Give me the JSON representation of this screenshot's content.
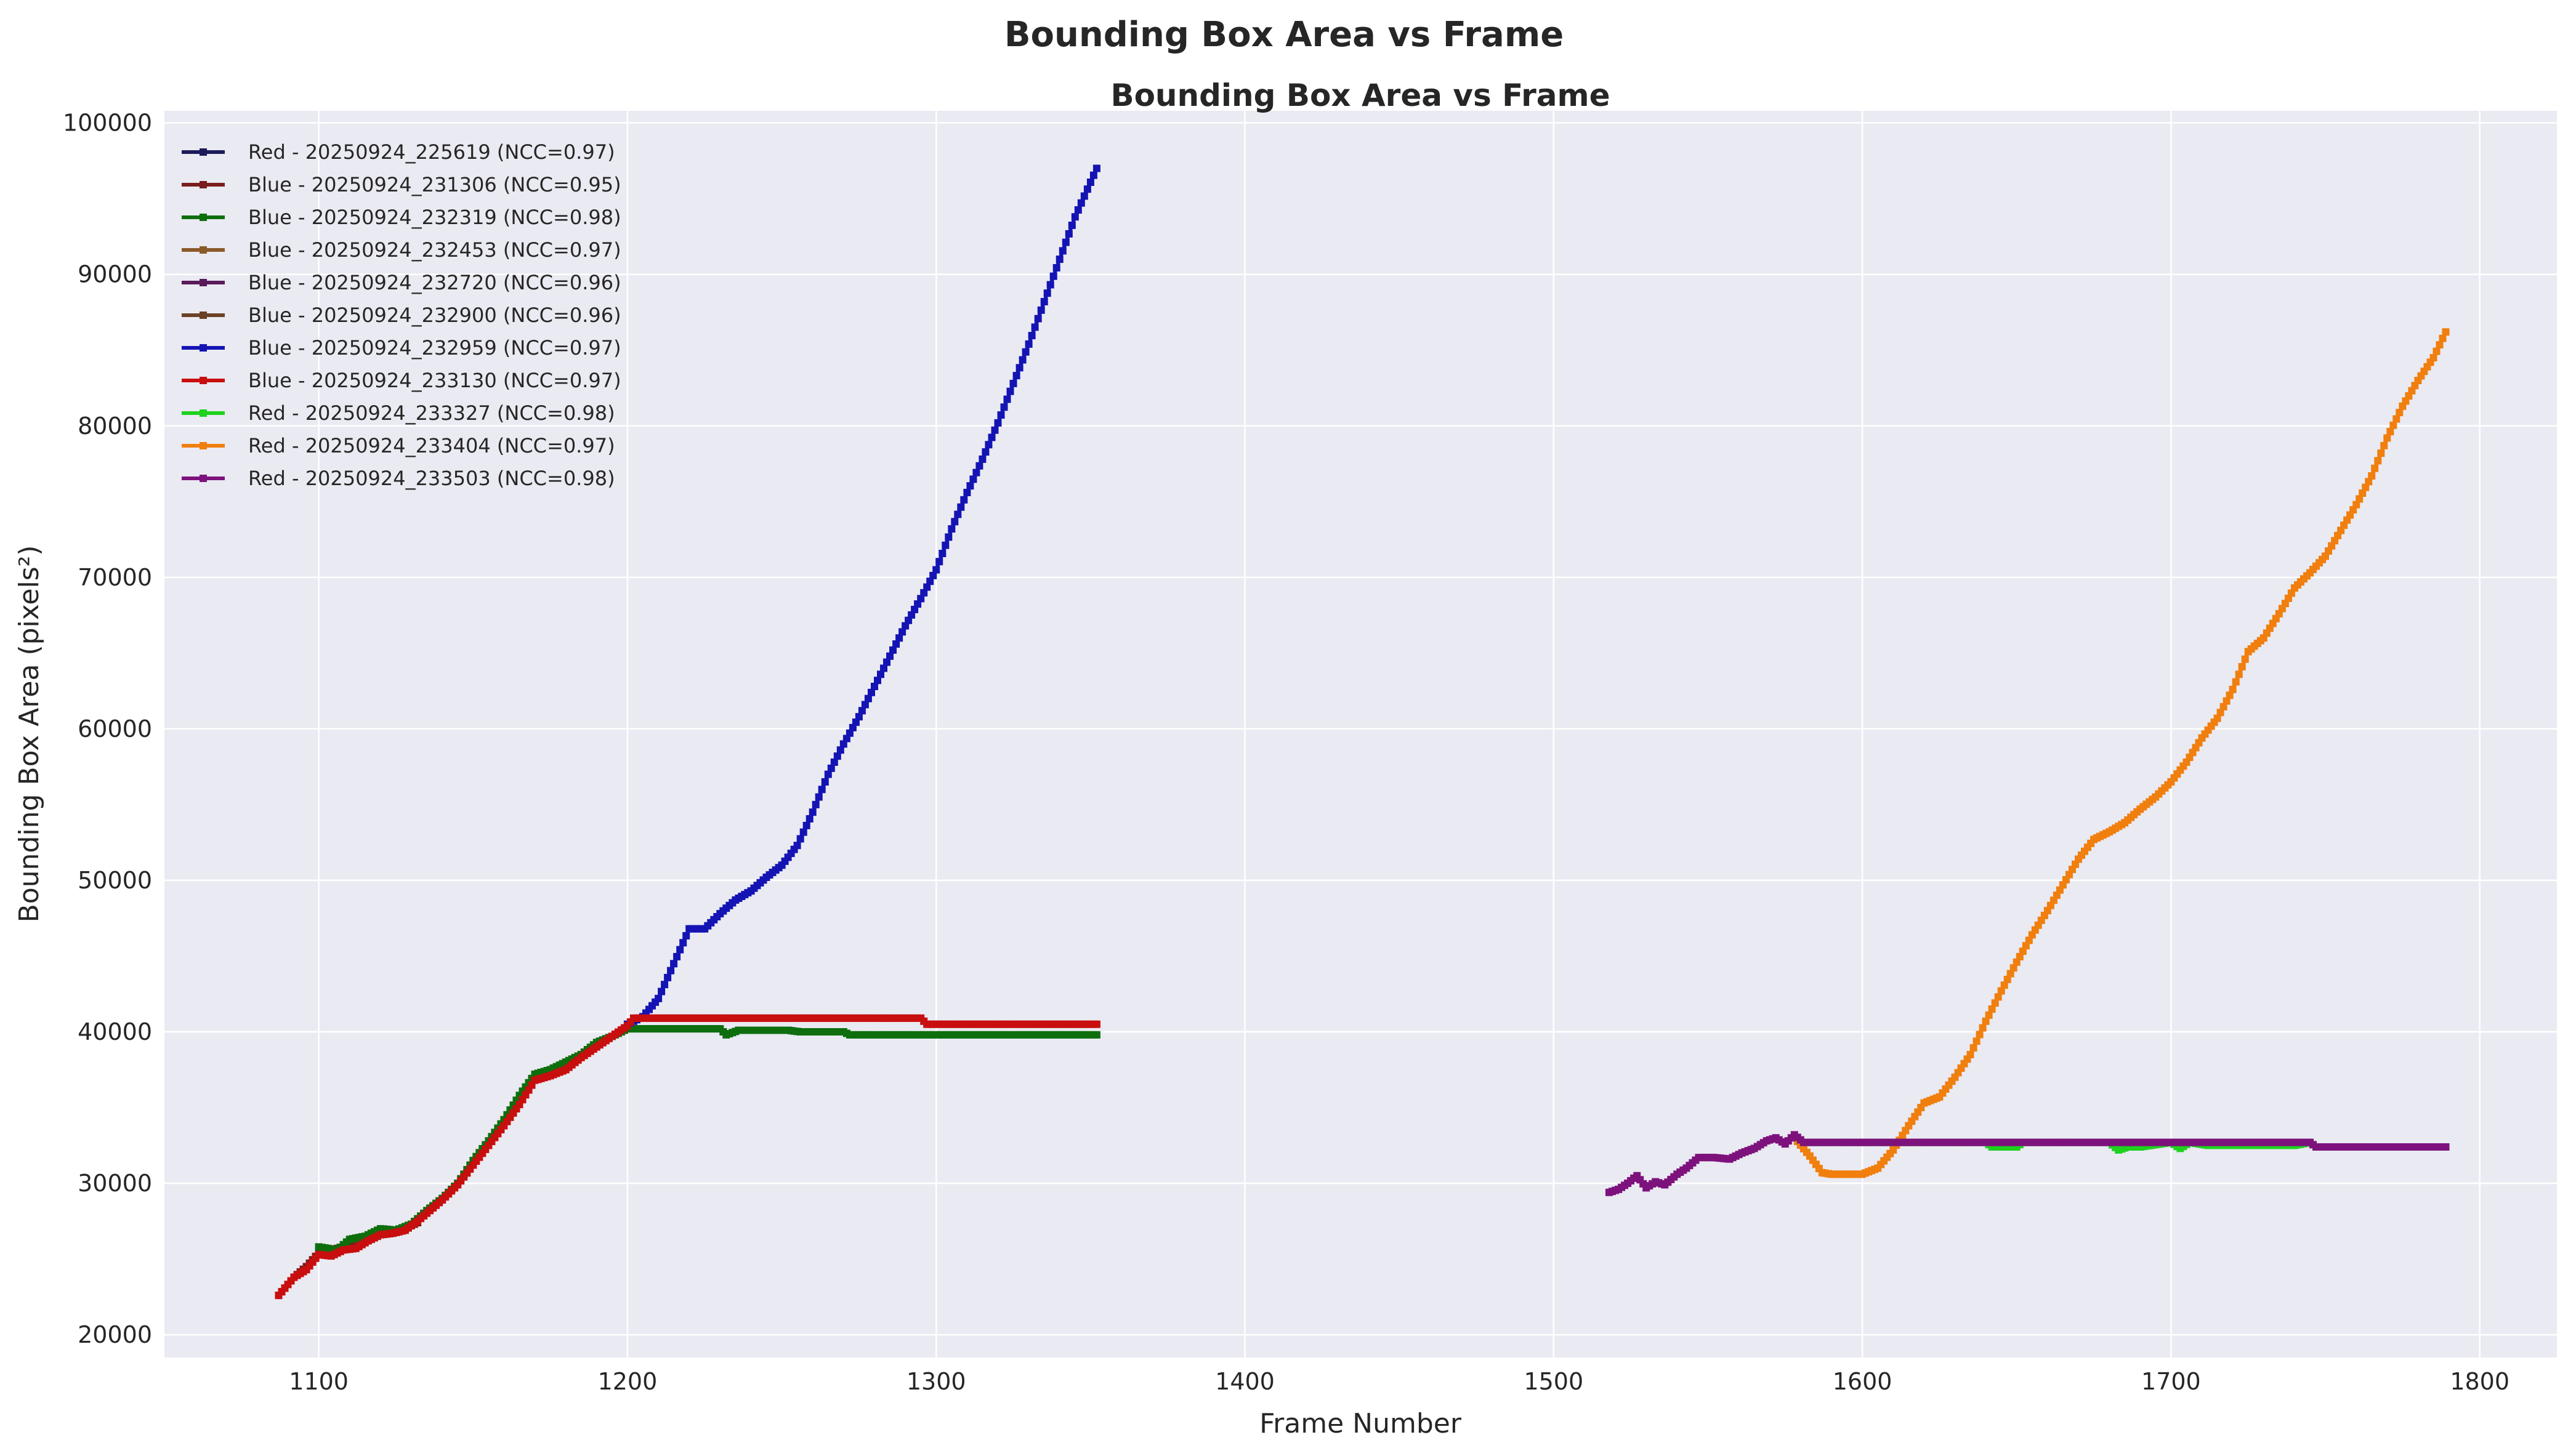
{
  "figure": {
    "suptitle": "Bounding Box Area vs Frame"
  },
  "colors": {
    "plot_bg": "#EAEAF2",
    "grid": "#FFFFFF"
  },
  "chart_data": {
    "type": "line",
    "title": "Bounding Box Area vs Frame",
    "xlabel": "Frame Number",
    "ylabel": "Bounding Box Area (pixels²)",
    "xlim": [
      1050,
      1825
    ],
    "ylim": [
      18500,
      100800
    ],
    "xticks": [
      1100,
      1200,
      1300,
      1400,
      1500,
      1600,
      1700,
      1800
    ],
    "yticks": [
      20000,
      30000,
      40000,
      50000,
      60000,
      70000,
      80000,
      90000,
      100000
    ],
    "grid": true,
    "legend_position": "top-left",
    "series": [
      {
        "name": "Red - 20250924_225619 (NCC=0.97)",
        "color": "#1c1c5a",
        "x": [],
        "y": []
      },
      {
        "name": "Blue - 20250924_231306 (NCC=0.95)",
        "color": "#7a1c1c",
        "x": [
          1087,
          1092,
          1096,
          1100,
          1104,
          1108,
          1112,
          1116,
          1120,
          1124,
          1128,
          1132
        ],
        "y": [
          22600,
          23800,
          24500,
          25400,
          25600,
          25800,
          26000,
          26400,
          26700,
          26800,
          27000,
          27400
        ]
      },
      {
        "name": "Blue - 20250924_232319 (NCC=0.98)",
        "color": "#0e6e0e",
        "x": [
          1100,
          1106,
          1110,
          1115,
          1120,
          1125,
          1130,
          1135,
          1140,
          1145,
          1150,
          1155,
          1160,
          1165,
          1170,
          1175,
          1180,
          1185,
          1190,
          1195,
          1200,
          1215,
          1230,
          1232,
          1236,
          1252,
          1256,
          1270,
          1272,
          1352
        ],
        "y": [
          25800,
          25600,
          26300,
          26500,
          27000,
          26900,
          27300,
          28200,
          29000,
          30000,
          31500,
          32800,
          34200,
          35800,
          37200,
          37500,
          38000,
          38500,
          39300,
          39700,
          40200,
          40200,
          40200,
          39800,
          40100,
          40100,
          40000,
          40000,
          39800,
          39800
        ]
      },
      {
        "name": "Blue - 20250924_232453 (NCC=0.97)",
        "color": "#8b5a2b",
        "x": [],
        "y": []
      },
      {
        "name": "Blue - 20250924_232720 (NCC=0.96)",
        "color": "#5a1a5a",
        "x": [],
        "y": []
      },
      {
        "name": "Blue - 20250924_232900 (NCC=0.96)",
        "color": "#6b4226",
        "x": [],
        "y": []
      },
      {
        "name": "Blue - 20250924_232959 (NCC=0.97)",
        "color": "#1414b4",
        "x": [
          1200,
          1205,
          1210,
          1215,
          1220,
          1225,
          1230,
          1235,
          1240,
          1245,
          1250,
          1255,
          1260,
          1265,
          1270,
          1275,
          1280,
          1285,
          1290,
          1295,
          1300,
          1305,
          1310,
          1315,
          1320,
          1325,
          1330,
          1335,
          1340,
          1345,
          1352
        ],
        "y": [
          40500,
          41000,
          42200,
          44500,
          46800,
          46800,
          47800,
          48700,
          49300,
          50200,
          51000,
          52300,
          54500,
          57000,
          59000,
          60800,
          62800,
          64800,
          66800,
          68600,
          70500,
          73200,
          75600,
          77800,
          80200,
          82800,
          85400,
          88200,
          91000,
          93800,
          97000
        ]
      },
      {
        "name": "Blue - 20250924_233130 (NCC=0.97)",
        "color": "#c80e0e",
        "x": [
          1087,
          1092,
          1096,
          1100,
          1104,
          1108,
          1112,
          1116,
          1120,
          1124,
          1128,
          1132,
          1136,
          1140,
          1145,
          1150,
          1155,
          1160,
          1165,
          1170,
          1175,
          1180,
          1185,
          1190,
          1195,
          1200,
          1202,
          1295,
          1297,
          1352
        ],
        "y": [
          22600,
          23800,
          24300,
          25300,
          25200,
          25600,
          25700,
          26200,
          26600,
          26700,
          26900,
          27500,
          28200,
          28900,
          29900,
          31200,
          32500,
          33800,
          35200,
          36800,
          37100,
          37500,
          38300,
          39000,
          39700,
          40400,
          40900,
          40900,
          40500,
          40500
        ]
      },
      {
        "name": "Red - 20250924_233327 (NCC=0.98)",
        "color": "#1ed21e",
        "x": [
          1580,
          1600,
          1640,
          1642,
          1650,
          1652,
          1680,
          1683,
          1686,
          1690,
          1700,
          1703,
          1706,
          1712,
          1724,
          1740,
          1745
        ],
        "y": [
          32700,
          32700,
          32700,
          32400,
          32400,
          32700,
          32700,
          32200,
          32400,
          32400,
          32700,
          32300,
          32700,
          32500,
          32500,
          32500,
          32700
        ]
      },
      {
        "name": "Red - 20250924_233404 (NCC=0.97)",
        "color": "#f07f0e",
        "x": [
          1578,
          1583,
          1587,
          1590,
          1595,
          1600,
          1605,
          1610,
          1615,
          1620,
          1625,
          1630,
          1635,
          1640,
          1645,
          1650,
          1655,
          1660,
          1665,
          1670,
          1675,
          1680,
          1685,
          1690,
          1695,
          1700,
          1705,
          1710,
          1715,
          1720,
          1725,
          1730,
          1735,
          1740,
          1745,
          1750,
          1755,
          1760,
          1765,
          1770,
          1775,
          1780,
          1785,
          1789
        ],
        "y": [
          33000,
          31800,
          30700,
          30600,
          30600,
          30600,
          31000,
          32200,
          33800,
          35300,
          35700,
          37000,
          38500,
          40700,
          42700,
          44600,
          46400,
          48000,
          49700,
          51400,
          52700,
          53200,
          53800,
          54700,
          55500,
          56500,
          57800,
          59400,
          60700,
          62600,
          65100,
          66000,
          67600,
          69300,
          70300,
          71400,
          73100,
          74800,
          76700,
          79200,
          81300,
          83000,
          84500,
          86200
        ]
      },
      {
        "name": "Red - 20250924_233503 (NCC=0.98)",
        "color": "#7d127d",
        "x": [
          1518,
          1521,
          1524,
          1527,
          1530,
          1533,
          1536,
          1540,
          1543,
          1547,
          1552,
          1557,
          1561,
          1565,
          1569,
          1572,
          1575,
          1578,
          1581,
          1585,
          1600,
          1640,
          1700,
          1745,
          1747,
          1789
        ],
        "y": [
          29400,
          29600,
          30000,
          30500,
          29700,
          30100,
          29900,
          30600,
          31000,
          31700,
          31700,
          31600,
          32000,
          32300,
          32800,
          33000,
          32600,
          33200,
          32700,
          32700,
          32700,
          32700,
          32700,
          32700,
          32400,
          32400
        ]
      }
    ]
  }
}
